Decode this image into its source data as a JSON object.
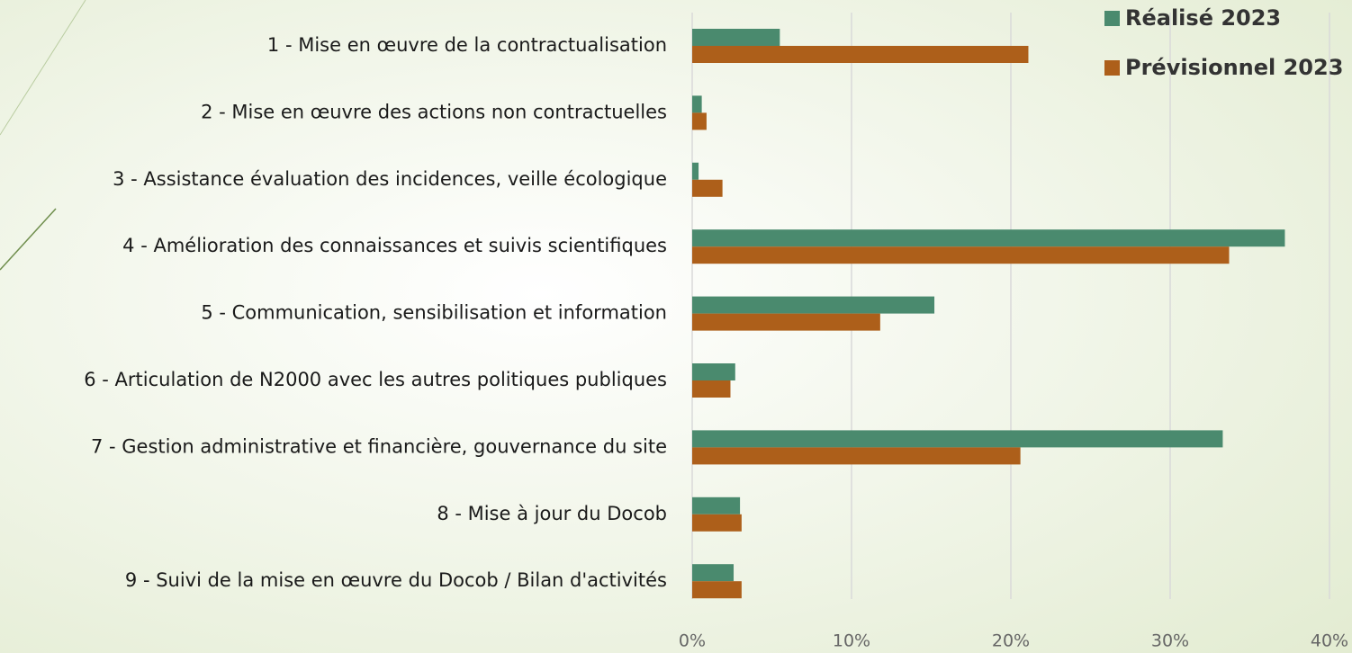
{
  "chart_data": {
    "type": "hbar",
    "categories": [
      "1 - Mise en œuvre de la contractualisation",
      "2 - Mise en œuvre des actions non contractuelles",
      "3 - Assistance évaluation des incidences, veille écologique",
      "4 - Amélioration des connaissances et suivis scientifiques",
      "5 - Communication, sensibilisation et information",
      "6 - Articulation de N2000 avec les autres politiques publiques",
      "7 - Gestion administrative et financière, gouvernance du site",
      "8 - Mise à jour du Docob",
      "9 - Suivi de la mise en œuvre du Docob / Bilan d'activités"
    ],
    "series": [
      {
        "name": "Réalisé 2023",
        "color": "#4a8a6e",
        "values": [
          5.5,
          0.6,
          0.4,
          37.2,
          15.2,
          2.7,
          33.3,
          3.0,
          2.6
        ]
      },
      {
        "name": "Prévisionnel 2023",
        "color": "#ad5f1a",
        "values": [
          21.1,
          0.9,
          1.9,
          33.7,
          11.8,
          2.4,
          20.6,
          3.1,
          3.1
        ]
      }
    ],
    "xlim": [
      0,
      40
    ],
    "xticks": [
      {
        "value": 0,
        "label": "0%"
      },
      {
        "value": 10,
        "label": "10%"
      },
      {
        "value": 20,
        "label": "20%"
      },
      {
        "value": 30,
        "label": "30%"
      },
      {
        "value": 40,
        "label": "40%"
      }
    ],
    "grid": true,
    "legend": "top-right"
  }
}
